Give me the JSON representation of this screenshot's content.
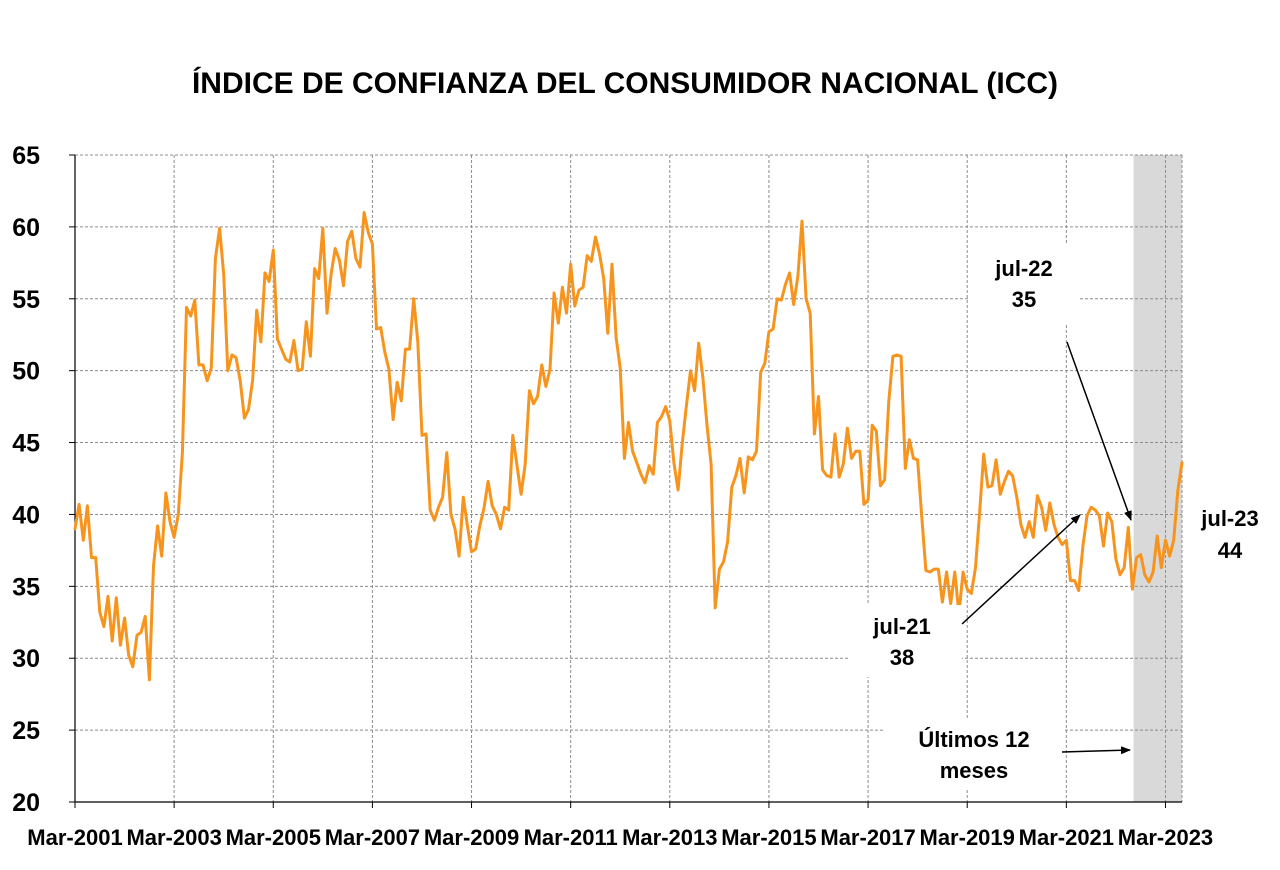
{
  "chart_data": {
    "type": "line",
    "title": "ÍNDICE DE CONFIANZA DEL CONSUMIDOR NACIONAL (ICC)",
    "xlabel": "",
    "ylabel": "",
    "ylim": [
      20,
      65
    ],
    "grid": true,
    "y_ticks": [
      "20",
      "25",
      "30",
      "35",
      "40",
      "45",
      "50",
      "55",
      "60",
      "65"
    ],
    "x_ticks": [
      "Mar-2001",
      "Mar-2003",
      "Mar-2005",
      "Mar-2007",
      "Mar-2009",
      "Mar-2011",
      "Mar-2013",
      "Mar-2015",
      "Mar-2017",
      "Mar-2019",
      "Mar-2021",
      "Mar-2023"
    ],
    "x_start": "2001-03",
    "x_end": "2023-07",
    "line_color": "#F7941D",
    "shade_color": "#D9D9D9",
    "shaded_region": {
      "from": "2022-08",
      "to": "2023-07"
    },
    "series": [
      {
        "name": "",
        "points": [
          [
            "2001-03",
            39.0
          ],
          [
            "2001-04",
            40.7
          ],
          [
            "2001-05",
            38.2
          ],
          [
            "2001-06",
            40.6
          ],
          [
            "2001-07",
            37.0
          ],
          [
            "2001-08",
            37.0
          ],
          [
            "2001-09",
            33.2
          ],
          [
            "2001-10",
            32.2
          ],
          [
            "2001-11",
            34.3
          ],
          [
            "2001-12",
            31.2
          ],
          [
            "2002-01",
            34.2
          ],
          [
            "2002-02",
            30.9
          ],
          [
            "2002-03",
            32.8
          ],
          [
            "2002-04",
            30.2
          ],
          [
            "2002-05",
            29.4
          ],
          [
            "2002-06",
            31.6
          ],
          [
            "2002-07",
            31.8
          ],
          [
            "2002-08",
            32.9
          ],
          [
            "2002-09",
            28.5
          ],
          [
            "2002-10",
            36.4
          ],
          [
            "2002-11",
            39.2
          ],
          [
            "2002-12",
            37.1
          ],
          [
            "2003-01",
            41.5
          ],
          [
            "2003-02",
            39.5
          ],
          [
            "2003-03",
            38.4
          ],
          [
            "2003-04",
            40.0
          ],
          [
            "2003-05",
            44.3
          ],
          [
            "2003-06",
            54.4
          ],
          [
            "2003-07",
            53.8
          ],
          [
            "2003-08",
            54.9
          ],
          [
            "2003-09",
            50.4
          ],
          [
            "2003-10",
            50.4
          ],
          [
            "2003-11",
            49.3
          ],
          [
            "2003-12",
            50.2
          ],
          [
            "2004-01",
            57.8
          ],
          [
            "2004-02",
            59.9
          ],
          [
            "2004-03",
            56.7
          ],
          [
            "2004-04",
            50.0
          ],
          [
            "2004-05",
            51.1
          ],
          [
            "2004-06",
            50.9
          ],
          [
            "2004-07",
            49.3
          ],
          [
            "2004-08",
            46.7
          ],
          [
            "2004-09",
            47.3
          ],
          [
            "2004-10",
            49.3
          ],
          [
            "2004-11",
            54.2
          ],
          [
            "2004-12",
            52.0
          ],
          [
            "2005-01",
            56.8
          ],
          [
            "2005-02",
            56.2
          ],
          [
            "2005-03",
            58.4
          ],
          [
            "2005-04",
            52.2
          ],
          [
            "2005-05",
            51.5
          ],
          [
            "2005-06",
            50.8
          ],
          [
            "2005-07",
            50.6
          ],
          [
            "2005-08",
            52.1
          ],
          [
            "2005-09",
            50.0
          ],
          [
            "2005-10",
            50.1
          ],
          [
            "2005-11",
            53.4
          ],
          [
            "2005-12",
            51.0
          ],
          [
            "2006-01",
            57.1
          ],
          [
            "2006-02",
            56.4
          ],
          [
            "2006-03",
            59.9
          ],
          [
            "2006-04",
            54.0
          ],
          [
            "2006-05",
            56.7
          ],
          [
            "2006-06",
            58.5
          ],
          [
            "2006-07",
            57.7
          ],
          [
            "2006-08",
            55.9
          ],
          [
            "2006-09",
            59.0
          ],
          [
            "2006-10",
            59.7
          ],
          [
            "2006-11",
            57.8
          ],
          [
            "2006-12",
            57.2
          ],
          [
            "2007-01",
            61.0
          ],
          [
            "2007-02",
            59.6
          ],
          [
            "2007-03",
            58.8
          ],
          [
            "2007-04",
            52.9
          ],
          [
            "2007-05",
            53.0
          ],
          [
            "2007-06",
            51.3
          ],
          [
            "2007-07",
            50.1
          ],
          [
            "2007-08",
            46.6
          ],
          [
            "2007-09",
            49.2
          ],
          [
            "2007-10",
            47.9
          ],
          [
            "2007-11",
            51.5
          ],
          [
            "2007-12",
            51.5
          ],
          [
            "2008-01",
            55.0
          ],
          [
            "2008-02",
            52.0
          ],
          [
            "2008-03",
            45.5
          ],
          [
            "2008-04",
            45.6
          ],
          [
            "2008-05",
            40.3
          ],
          [
            "2008-06",
            39.6
          ],
          [
            "2008-07",
            40.5
          ],
          [
            "2008-08",
            41.2
          ],
          [
            "2008-09",
            44.3
          ],
          [
            "2008-10",
            40.0
          ],
          [
            "2008-11",
            39.0
          ],
          [
            "2008-12",
            37.1
          ],
          [
            "2009-01",
            41.2
          ],
          [
            "2009-02",
            39.2
          ],
          [
            "2009-03",
            37.4
          ],
          [
            "2009-04",
            37.6
          ],
          [
            "2009-05",
            39.2
          ],
          [
            "2009-06",
            40.4
          ],
          [
            "2009-07",
            42.3
          ],
          [
            "2009-08",
            40.6
          ],
          [
            "2009-09",
            40.0
          ],
          [
            "2009-10",
            39.0
          ],
          [
            "2009-11",
            40.5
          ],
          [
            "2009-12",
            40.3
          ],
          [
            "2010-01",
            45.5
          ],
          [
            "2010-02",
            43.4
          ],
          [
            "2010-03",
            41.4
          ],
          [
            "2010-04",
            43.5
          ],
          [
            "2010-05",
            48.6
          ],
          [
            "2010-06",
            47.7
          ],
          [
            "2010-07",
            48.2
          ],
          [
            "2010-08",
            50.4
          ],
          [
            "2010-09",
            48.9
          ],
          [
            "2010-10",
            50.1
          ],
          [
            "2010-11",
            55.4
          ],
          [
            "2010-12",
            53.3
          ],
          [
            "2011-01",
            55.8
          ],
          [
            "2011-02",
            54.0
          ],
          [
            "2011-03",
            57.4
          ],
          [
            "2011-04",
            54.5
          ],
          [
            "2011-05",
            55.6
          ],
          [
            "2011-06",
            55.8
          ],
          [
            "2011-07",
            58.0
          ],
          [
            "2011-08",
            57.6
          ],
          [
            "2011-09",
            59.3
          ],
          [
            "2011-10",
            58.1
          ],
          [
            "2011-11",
            56.4
          ],
          [
            "2011-12",
            52.6
          ],
          [
            "2012-01",
            57.4
          ],
          [
            "2012-02",
            52.3
          ],
          [
            "2012-03",
            50.2
          ],
          [
            "2012-04",
            43.9
          ],
          [
            "2012-05",
            46.4
          ],
          [
            "2012-06",
            44.4
          ],
          [
            "2012-07",
            43.6
          ],
          [
            "2012-08",
            42.8
          ],
          [
            "2012-09",
            42.2
          ],
          [
            "2012-10",
            43.4
          ],
          [
            "2012-11",
            42.8
          ],
          [
            "2012-12",
            46.4
          ],
          [
            "2013-01",
            46.8
          ],
          [
            "2013-02",
            47.5
          ],
          [
            "2013-03",
            46.5
          ],
          [
            "2013-04",
            43.6
          ],
          [
            "2013-05",
            41.7
          ],
          [
            "2013-06",
            44.9
          ],
          [
            "2013-07",
            47.5
          ],
          [
            "2013-08",
            50.0
          ],
          [
            "2013-09",
            48.6
          ],
          [
            "2013-10",
            51.9
          ],
          [
            "2013-11",
            49.5
          ],
          [
            "2013-12",
            46.2
          ],
          [
            "2014-01",
            43.5
          ],
          [
            "2014-02",
            33.5
          ],
          [
            "2014-03",
            36.2
          ],
          [
            "2014-04",
            36.7
          ],
          [
            "2014-05",
            38.1
          ],
          [
            "2014-06",
            41.9
          ],
          [
            "2014-07",
            42.7
          ],
          [
            "2014-08",
            43.9
          ],
          [
            "2014-09",
            41.5
          ],
          [
            "2014-10",
            44.0
          ],
          [
            "2014-11",
            43.8
          ],
          [
            "2014-12",
            44.4
          ],
          [
            "2015-01",
            49.9
          ],
          [
            "2015-02",
            50.5
          ],
          [
            "2015-03",
            52.7
          ],
          [
            "2015-04",
            52.9
          ],
          [
            "2015-05",
            55.0
          ],
          [
            "2015-06",
            54.9
          ],
          [
            "2015-07",
            56.0
          ],
          [
            "2015-08",
            56.8
          ],
          [
            "2015-09",
            54.6
          ],
          [
            "2015-10",
            56.6
          ],
          [
            "2015-11",
            60.4
          ],
          [
            "2015-12",
            55.0
          ],
          [
            "2016-01",
            54.0
          ],
          [
            "2016-02",
            45.6
          ],
          [
            "2016-03",
            48.2
          ],
          [
            "2016-04",
            43.1
          ],
          [
            "2016-05",
            42.7
          ],
          [
            "2016-06",
            42.6
          ],
          [
            "2016-07",
            45.6
          ],
          [
            "2016-08",
            42.6
          ],
          [
            "2016-09",
            43.5
          ],
          [
            "2016-10",
            46.0
          ],
          [
            "2016-11",
            43.9
          ],
          [
            "2016-12",
            44.4
          ],
          [
            "2017-01",
            44.4
          ],
          [
            "2017-02",
            40.7
          ],
          [
            "2017-03",
            41.0
          ],
          [
            "2017-04",
            46.2
          ],
          [
            "2017-05",
            45.8
          ],
          [
            "2017-06",
            42.0
          ],
          [
            "2017-07",
            42.4
          ],
          [
            "2017-08",
            47.8
          ],
          [
            "2017-09",
            51.0
          ],
          [
            "2017-10",
            51.1
          ],
          [
            "2017-11",
            51.0
          ],
          [
            "2017-12",
            43.2
          ],
          [
            "2018-01",
            45.2
          ],
          [
            "2018-02",
            43.9
          ],
          [
            "2018-03",
            43.8
          ],
          [
            "2018-04",
            39.8
          ],
          [
            "2018-05",
            36.1
          ],
          [
            "2018-06",
            36.0
          ],
          [
            "2018-07",
            36.2
          ],
          [
            "2018-08",
            36.2
          ],
          [
            "2018-09",
            33.9
          ],
          [
            "2018-10",
            36.0
          ],
          [
            "2018-11",
            33.8
          ],
          [
            "2018-12",
            36.0
          ],
          [
            "2019-01",
            33.1
          ],
          [
            "2019-02",
            36.0
          ],
          [
            "2019-03",
            34.8
          ],
          [
            "2019-04",
            34.5
          ],
          [
            "2019-05",
            36.3
          ],
          [
            "2019-06",
            40.1
          ],
          [
            "2019-07",
            44.2
          ],
          [
            "2019-08",
            41.9
          ],
          [
            "2019-09",
            42.0
          ],
          [
            "2019-10",
            43.8
          ],
          [
            "2019-11",
            41.4
          ],
          [
            "2019-12",
            42.3
          ],
          [
            "2020-01",
            43.0
          ],
          [
            "2020-02",
            42.7
          ],
          [
            "2020-03",
            41.2
          ],
          [
            "2020-04",
            39.3
          ],
          [
            "2020-05",
            38.4
          ],
          [
            "2020-06",
            39.5
          ],
          [
            "2020-07",
            38.4
          ],
          [
            "2020-08",
            41.3
          ],
          [
            "2020-09",
            40.5
          ],
          [
            "2020-10",
            38.9
          ],
          [
            "2020-11",
            40.8
          ],
          [
            "2020-12",
            39.3
          ],
          [
            "2021-01",
            38.4
          ],
          [
            "2021-02",
            37.9
          ],
          [
            "2021-03",
            38.2
          ],
          [
            "2021-04",
            35.4
          ],
          [
            "2021-05",
            35.4
          ],
          [
            "2021-06",
            34.7
          ],
          [
            "2021-07",
            37.8
          ],
          [
            "2021-08",
            39.9
          ],
          [
            "2021-09",
            40.5
          ],
          [
            "2021-10",
            40.3
          ],
          [
            "2021-11",
            39.9
          ],
          [
            "2021-12",
            37.8
          ],
          [
            "2022-01",
            40.1
          ],
          [
            "2022-02",
            39.5
          ],
          [
            "2022-03",
            36.9
          ],
          [
            "2022-04",
            35.8
          ],
          [
            "2022-05",
            36.3
          ],
          [
            "2022-06",
            39.1
          ],
          [
            "2022-07",
            34.8
          ],
          [
            "2022-08",
            37.0
          ],
          [
            "2022-09",
            37.2
          ],
          [
            "2022-10",
            35.8
          ],
          [
            "2022-11",
            35.3
          ],
          [
            "2022-12",
            36.0
          ],
          [
            "2023-01",
            38.5
          ],
          [
            "2023-02",
            36.3
          ],
          [
            "2023-03",
            38.2
          ],
          [
            "2023-04",
            37.1
          ],
          [
            "2023-05",
            38.2
          ],
          [
            "2023-06",
            41.7
          ],
          [
            "2023-07",
            43.6
          ]
        ]
      }
    ],
    "annotations": [
      {
        "line1": "jul-22",
        "line2": "35",
        "target": [
          "2022-07",
          39.2
        ]
      },
      {
        "line1": "jul-21",
        "line2": "38",
        "target": [
          "2021-07",
          40.2
        ]
      },
      {
        "line1": "Últimos 12",
        "line2": "meses",
        "target": [
          "2022-08",
          23.5
        ]
      },
      {
        "line1": "jul-23",
        "line2": "44",
        "target": null
      }
    ]
  }
}
